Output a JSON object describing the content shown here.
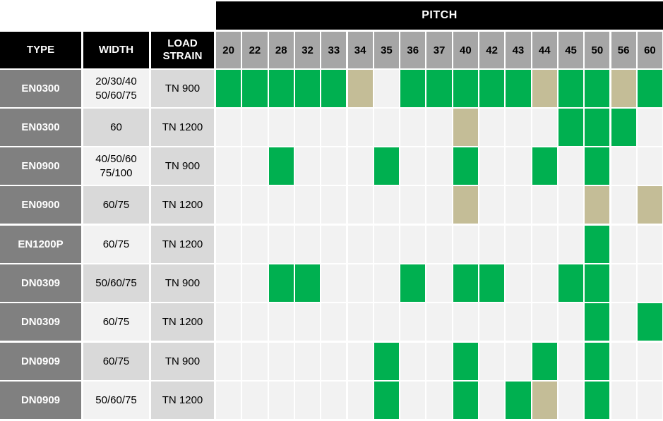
{
  "table": {
    "pitch_label": "PITCH",
    "headers": {
      "type": "TYPE",
      "width": "WIDTH",
      "load_line1": "LOAD",
      "load_line2": "STRAIN"
    },
    "pitches": [
      "20",
      "22",
      "28",
      "32",
      "33",
      "34",
      "35",
      "36",
      "37",
      "40",
      "42",
      "43",
      "44",
      "45",
      "50",
      "56",
      "60"
    ],
    "colors": {
      "green": "#00b050",
      "tan": "#c4bd97",
      "empty": "#f2f2f2",
      "type_bg": "#808080",
      "pitch_head_bg": "#a6a6a6",
      "width_bg_light": "#f2f2f2",
      "width_bg_dark": "#d9d9d9",
      "load_bg": "#d9d9d9"
    },
    "rows": [
      {
        "type": "EN0300",
        "width": [
          "20/30/40",
          "50/60/75"
        ],
        "load": "TN 900",
        "cells": [
          "G",
          "G",
          "G",
          "G",
          "G",
          "T",
          "",
          "G",
          "G",
          "G",
          "G",
          "G",
          "T",
          "G",
          "G",
          "T",
          "G"
        ]
      },
      {
        "type": "EN0300",
        "width": [
          "60"
        ],
        "load": "TN 1200",
        "cells": [
          "",
          "",
          "",
          "",
          "",
          "",
          "",
          "",
          "",
          "T",
          "",
          "",
          "",
          "G",
          "G",
          "G",
          ""
        ]
      },
      {
        "type": "EN0900",
        "width": [
          "40/50/60",
          "75/100"
        ],
        "load": "TN 900",
        "cells": [
          "",
          "",
          "G",
          "",
          "",
          "",
          "G",
          "",
          "",
          "G",
          "",
          "",
          "G",
          "",
          "G",
          "",
          ""
        ]
      },
      {
        "type": "EN0900",
        "width": [
          "60/75"
        ],
        "load": "TN 1200",
        "cells": [
          "",
          "",
          "",
          "",
          "",
          "",
          "",
          "",
          "",
          "T",
          "",
          "",
          "",
          "",
          "T",
          "",
          "T"
        ]
      },
      {
        "type": "EN1200P",
        "width": [
          "60/75"
        ],
        "load": "TN 1200",
        "cells": [
          "",
          "",
          "",
          "",
          "",
          "",
          "",
          "",
          "",
          "",
          "",
          "",
          "",
          "",
          "G",
          "",
          ""
        ]
      },
      {
        "type": "DN0309",
        "width": [
          "50/60/75"
        ],
        "load": "TN 900",
        "cells": [
          "",
          "",
          "G",
          "G",
          "",
          "",
          "",
          "G",
          "",
          "G",
          "G",
          "",
          "",
          "G",
          "G",
          "",
          ""
        ]
      },
      {
        "type": "DN0309",
        "width": [
          "60/75"
        ],
        "load": "TN 1200",
        "cells": [
          "",
          "",
          "",
          "",
          "",
          "",
          "",
          "",
          "",
          "",
          "",
          "",
          "",
          "",
          "G",
          "",
          "G"
        ]
      },
      {
        "type": "DN0909",
        "width": [
          "60/75"
        ],
        "load": "TN 900",
        "cells": [
          "",
          "",
          "",
          "",
          "",
          "",
          "G",
          "",
          "",
          "G",
          "",
          "",
          "G",
          "",
          "G",
          "",
          ""
        ]
      },
      {
        "type": "DN0909",
        "width": [
          "50/60/75"
        ],
        "load": "TN 1200",
        "cells": [
          "",
          "",
          "",
          "",
          "",
          "",
          "G",
          "",
          "",
          "G",
          "",
          "G",
          "T",
          "",
          "G",
          "",
          ""
        ]
      }
    ]
  }
}
